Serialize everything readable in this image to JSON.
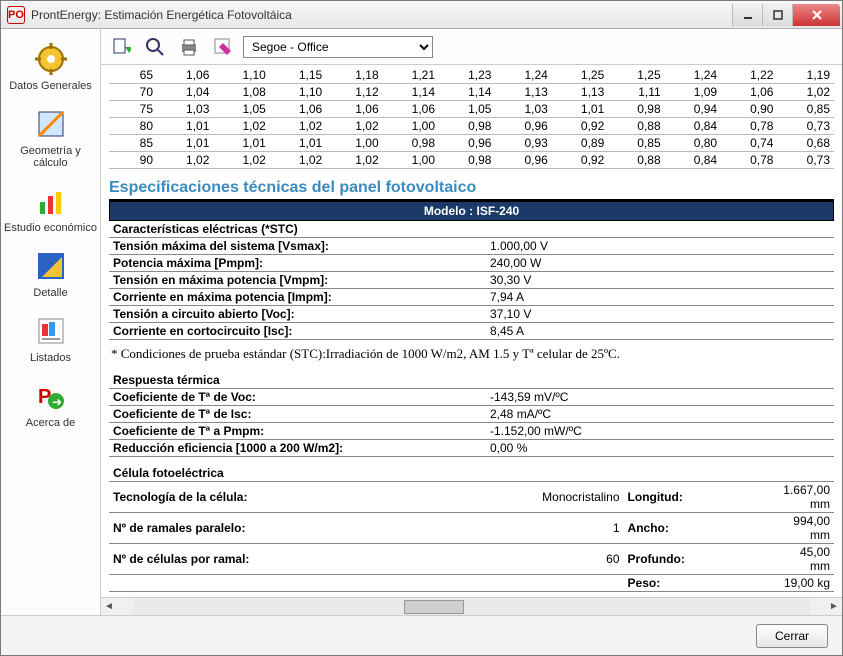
{
  "window": {
    "app_prefix": "PO",
    "title": "ProntEnergy: Estimación Energética Fotovoltáica"
  },
  "toolbar": {
    "theme_selected": "Segoe - Office"
  },
  "sidebar": {
    "items": [
      {
        "label": "Datos Generales",
        "icon": "gear-icon"
      },
      {
        "label": "Geometría y cálculo",
        "icon": "ruler-icon"
      },
      {
        "label": "Estudio económico",
        "icon": "chart-icon"
      },
      {
        "label": "Detalle",
        "icon": "detail-icon"
      },
      {
        "label": "Listados",
        "icon": "list-icon"
      },
      {
        "label": "Acerca de",
        "icon": "about-icon"
      }
    ]
  },
  "data_table": {
    "rows": [
      {
        "k": "65",
        "v": [
          "1,06",
          "1,10",
          "1,15",
          "1,18",
          "1,21",
          "1,23",
          "1,24",
          "1,25",
          "1,25",
          "1,24",
          "1,22",
          "1,19"
        ]
      },
      {
        "k": "70",
        "v": [
          "1,04",
          "1,08",
          "1,10",
          "1,12",
          "1,14",
          "1,14",
          "1,13",
          "1,13",
          "1,11",
          "1,09",
          "1,06",
          "1,02"
        ]
      },
      {
        "k": "75",
        "v": [
          "1,03",
          "1,05",
          "1,06",
          "1,06",
          "1,06",
          "1,05",
          "1,03",
          "1,01",
          "0,98",
          "0,94",
          "0,90",
          "0,85"
        ]
      },
      {
        "k": "80",
        "v": [
          "1,01",
          "1,02",
          "1,02",
          "1,02",
          "1,00",
          "0,98",
          "0,96",
          "0,92",
          "0,88",
          "0,84",
          "0,78",
          "0,73"
        ]
      },
      {
        "k": "85",
        "v": [
          "1,01",
          "1,01",
          "1,01",
          "1,00",
          "0,98",
          "0,96",
          "0,93",
          "0,89",
          "0,85",
          "0,80",
          "0,74",
          "0,68"
        ]
      },
      {
        "k": "90",
        "v": [
          "1,02",
          "1,02",
          "1,02",
          "1,02",
          "1,00",
          "0,98",
          "0,96",
          "0,92",
          "0,88",
          "0,84",
          "0,78",
          "0,73"
        ]
      }
    ]
  },
  "spec": {
    "heading": "Especificaciones técnicas del panel fotovoltaico",
    "model_label": "Modelo : ISF-240",
    "sections": {
      "electrical": {
        "title": "Características eléctricas (*STC)",
        "rows": [
          {
            "label": "Tensión máxima del sistema [Vsmax]:",
            "value": "1.000,00 V"
          },
          {
            "label": "Potencia máxima [Pmpm]:",
            "value": "240,00 W"
          },
          {
            "label": "Tensión en máxima potencia [Vmpm]:",
            "value": "30,30 V"
          },
          {
            "label": "Corriente en máxima potencia [Impm]:",
            "value": "7,94 A"
          },
          {
            "label": "Tensión a circuito abierto [Voc]:",
            "value": "37,10 V"
          },
          {
            "label": "Corriente en cortocircuito [Isc]:",
            "value": "8,45 A"
          }
        ],
        "note": "* Condiciones de prueba estándar (STC):Irradiación de 1000 W/m2, AM 1.5 y Tª celular de 25ºC."
      },
      "thermal": {
        "title": "Respuesta térmica",
        "rows": [
          {
            "label": "Coeficiente de Tª de Voc:",
            "value": "-143,59 mV/ºC"
          },
          {
            "label": "Coeficiente de Tª de Isc:",
            "value": "2,48 mA/ºC"
          },
          {
            "label": "Coeficiente de Tª a Pmpm:",
            "value": "-1.152,00 mW/ºC"
          },
          {
            "label": "Reducción eficiencia [1000 a 200 W/m2]:",
            "value": "0,00 %"
          }
        ]
      },
      "cell": {
        "title": "Célula fotoeléctrica",
        "left": [
          {
            "label": "Tecnología de la célula:",
            "value": "Monocristalino"
          },
          {
            "label": "Nº de ramales paralelo:",
            "value": "1"
          },
          {
            "label": "Nº de células por ramal:",
            "value": "60"
          }
        ],
        "right": [
          {
            "label": "Longitud:",
            "value": "1.667,00 mm"
          },
          {
            "label": "Ancho:",
            "value": "994,00 mm"
          },
          {
            "label": "Profundo:",
            "value": "45,00 mm"
          },
          {
            "label": "Peso:",
            "value": "19,00 kg"
          }
        ]
      }
    }
  },
  "footer": {
    "close_label": "Cerrar"
  },
  "colors": {
    "heading": "#3a8bbf",
    "band_bg": "#1b3a6a",
    "band_border": "#000000"
  }
}
